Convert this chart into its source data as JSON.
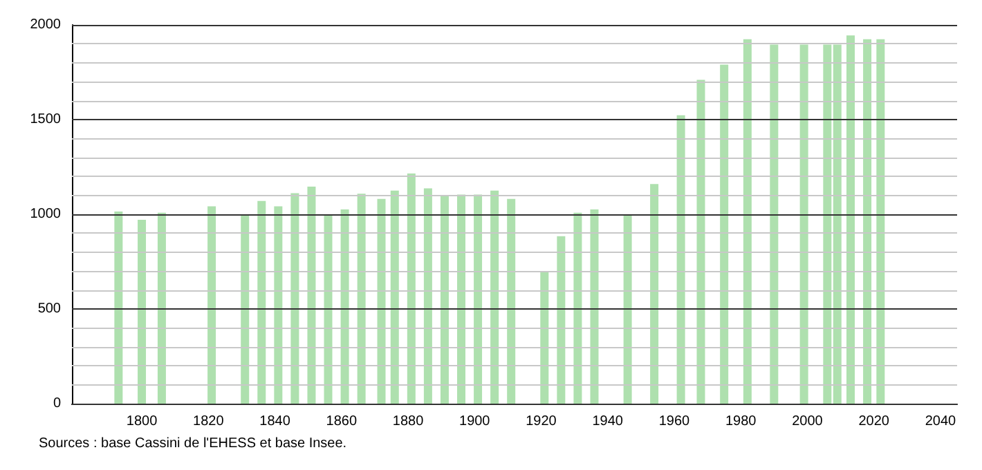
{
  "chart_data": {
    "type": "bar",
    "x": [
      1793,
      1800,
      1806,
      1821,
      1831,
      1836,
      1841,
      1846,
      1851,
      1856,
      1861,
      1866,
      1872,
      1876,
      1881,
      1886,
      1891,
      1896,
      1901,
      1906,
      1911,
      1921,
      1926,
      1931,
      1936,
      1946,
      1954,
      1962,
      1968,
      1975,
      1982,
      1990,
      1999,
      2006,
      2009,
      2013,
      2018,
      2022
    ],
    "values": [
      1015,
      971,
      1008,
      1042,
      999,
      1070,
      1042,
      1111,
      1146,
      999,
      1026,
      1109,
      1081,
      1125,
      1215,
      1137,
      1095,
      1104,
      1104,
      1125,
      1081,
      693,
      884,
      1008,
      1026,
      999,
      1160,
      1523,
      1710,
      1790,
      1924,
      1896,
      1896,
      1896,
      1896,
      1944,
      1924,
      1924
    ],
    "color": "#aee0ae",
    "xlim": [
      1779,
      2045
    ],
    "xticks": [
      1800,
      1820,
      1840,
      1860,
      1880,
      1900,
      1920,
      1940,
      1960,
      1980,
      2000,
      2020,
      2040
    ],
    "ylim": [
      0,
      2000
    ],
    "yticks": [
      0,
      {
        "value": 100,
        "label": null
      },
      {
        "value": 200,
        "label": null
      },
      {
        "value": 300,
        "label": null
      },
      {
        "value": 400,
        "label": null
      },
      500,
      {
        "value": 600,
        "label": null
      },
      {
        "value": 700,
        "label": null
      },
      {
        "value": 800,
        "label": null
      },
      {
        "value": 900,
        "label": null
      },
      1000,
      {
        "value": 1100,
        "label": null
      },
      {
        "value": 1200,
        "label": null
      },
      {
        "value": 1300,
        "label": null
      },
      {
        "value": 1400,
        "label": null
      },
      1500,
      {
        "value": 1600,
        "label": null
      },
      {
        "value": 1700,
        "label": null
      },
      {
        "value": 1800,
        "label": null
      },
      {
        "value": 1900,
        "label": null
      },
      2000
    ],
    "grid": "y",
    "annotations": [
      "Sources : base Cassini de l'EHESS et base Insee."
    ]
  }
}
